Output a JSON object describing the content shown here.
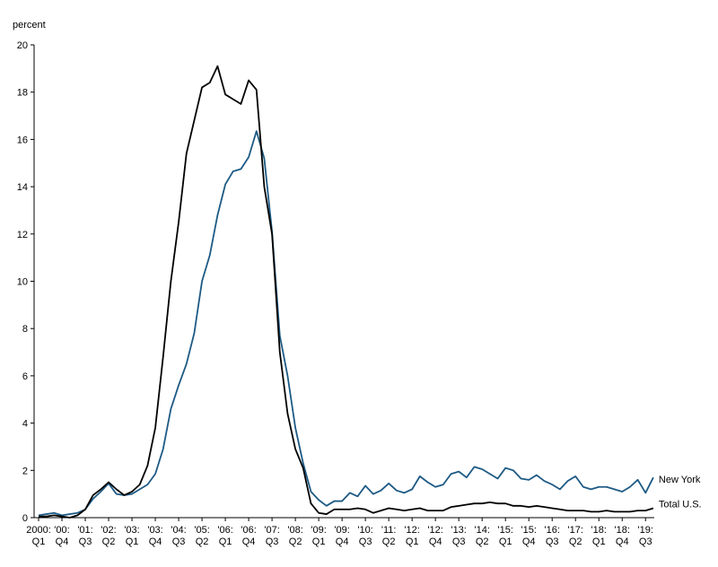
{
  "chart_data": {
    "type": "line",
    "y_label": "percent",
    "categories": [
      [
        "2000:",
        "Q1"
      ],
      null,
      null,
      [
        "'00:",
        "Q4"
      ],
      null,
      null,
      [
        "'01:",
        "Q3"
      ],
      null,
      null,
      [
        "'02:",
        "Q2"
      ],
      null,
      null,
      [
        "'03:",
        "Q1"
      ],
      null,
      null,
      [
        "'03:",
        "Q4"
      ],
      null,
      null,
      [
        "'04:",
        "Q3"
      ],
      null,
      null,
      [
        "'05:",
        "Q2"
      ],
      null,
      null,
      [
        "'06:",
        "Q1"
      ],
      null,
      null,
      [
        "'06:",
        "Q4"
      ],
      null,
      null,
      [
        "'07:",
        "Q3"
      ],
      null,
      null,
      [
        "'08:",
        "Q2"
      ],
      null,
      null,
      [
        "'09:",
        "Q1"
      ],
      null,
      null,
      [
        "'09:",
        "Q4"
      ],
      null,
      null,
      [
        "'10:",
        "Q3"
      ],
      null,
      null,
      [
        "'11:",
        "Q2"
      ],
      null,
      null,
      [
        "'12:",
        "Q1"
      ],
      null,
      null,
      [
        "'12:",
        "Q4"
      ],
      null,
      null,
      [
        "'13:",
        "Q3"
      ],
      null,
      null,
      [
        "'14:",
        "Q2"
      ],
      null,
      null,
      [
        "'15:",
        "Q1"
      ],
      null,
      null,
      [
        "'15:",
        "Q4"
      ],
      null,
      null,
      [
        "'16:",
        "Q3"
      ],
      null,
      null,
      [
        "'17:",
        "Q2"
      ],
      null,
      null,
      [
        "'18:",
        "Q1"
      ],
      null,
      null,
      [
        "'18:",
        "Q4"
      ],
      null,
      null,
      [
        "'19:",
        "Q3"
      ],
      null
    ],
    "series": [
      {
        "name": "New York",
        "color": "#1d5a85",
        "values": [
          0.1,
          0.15,
          0.2,
          0.1,
          0.15,
          0.2,
          0.35,
          0.8,
          1.1,
          1.45,
          1.0,
          0.95,
          1.0,
          1.2,
          1.4,
          1.85,
          2.9,
          4.6,
          5.6,
          6.5,
          7.8,
          10.0,
          11.1,
          12.8,
          14.1,
          14.65,
          14.75,
          15.25,
          16.35,
          15.2,
          12.1,
          7.7,
          6.0,
          3.8,
          2.3,
          1.1,
          0.75,
          0.5,
          0.7,
          0.7,
          1.05,
          0.9,
          1.35,
          1.0,
          1.15,
          1.45,
          1.15,
          1.05,
          1.2,
          1.75,
          1.5,
          1.3,
          1.4,
          1.85,
          1.95,
          1.7,
          2.15,
          2.05,
          1.85,
          1.65,
          2.1,
          2.0,
          1.65,
          1.6,
          1.8,
          1.55,
          1.4,
          1.2,
          1.55,
          1.75,
          1.3,
          1.2,
          1.3,
          1.3,
          1.2,
          1.1,
          1.3,
          1.6,
          1.05,
          1.7
        ]
      },
      {
        "name": "Total U.S.",
        "color": "#000000",
        "values": [
          0.05,
          0.05,
          0.1,
          0.05,
          0.0,
          0.1,
          0.35,
          0.95,
          1.2,
          1.5,
          1.2,
          0.95,
          1.1,
          1.4,
          2.2,
          3.8,
          6.8,
          10.0,
          12.5,
          15.4,
          16.8,
          18.2,
          18.4,
          19.1,
          17.9,
          17.7,
          17.5,
          18.5,
          18.1,
          14.0,
          12.0,
          7.0,
          4.4,
          2.9,
          2.1,
          0.6,
          0.2,
          0.15,
          0.35,
          0.35,
          0.35,
          0.4,
          0.35,
          0.2,
          0.3,
          0.4,
          0.35,
          0.3,
          0.35,
          0.4,
          0.3,
          0.3,
          0.3,
          0.45,
          0.5,
          0.55,
          0.6,
          0.6,
          0.65,
          0.6,
          0.6,
          0.5,
          0.5,
          0.45,
          0.5,
          0.45,
          0.4,
          0.35,
          0.3,
          0.3,
          0.3,
          0.25,
          0.25,
          0.3,
          0.25,
          0.25,
          0.25,
          0.3,
          0.3,
          0.4
        ]
      }
    ],
    "ylim": [
      0,
      20
    ],
    "yticks": [
      0,
      2,
      4,
      6,
      8,
      10,
      12,
      14,
      16,
      18,
      20
    ]
  }
}
